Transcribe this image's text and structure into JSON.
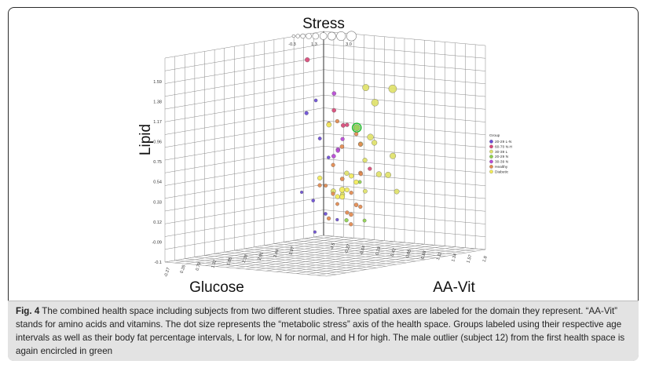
{
  "chart_data": {
    "type": "scatter",
    "axes": {
      "lipid": {
        "label": "Lipid",
        "ticks": [
          "1.59",
          "1.38",
          "1.17",
          "0.96",
          "0.75",
          "0.54",
          "0.33",
          "0.12",
          "-0.09",
          "-0.1"
        ]
      },
      "glucose": {
        "label": "Glucose",
        "ticks": [
          "-0.27",
          "0.26",
          "0.79",
          "1.32",
          "1.85",
          "2.38",
          "2.91",
          "3.44",
          "3.97"
        ]
      },
      "aa_vit": {
        "label": "AA-Vit",
        "ticks": [
          "-4.5",
          "-0.27",
          "-0.04",
          "0.19",
          "0.42",
          "0.65",
          "0.88",
          "1.11",
          "1.34",
          "1.57",
          "1.8"
        ]
      },
      "stress": {
        "label": "Stress",
        "size_ticks": [
          "-0.3",
          "1.3",
          "3.0"
        ]
      }
    },
    "legend": {
      "title": "Group",
      "placement": "right",
      "entries": [
        {
          "label": "20-29 L-N",
          "color": "#6a4cd6"
        },
        {
          "label": "60-70 N-H",
          "color": "#d94a7a"
        },
        {
          "label": "30-39 L",
          "color": "#dfe26a"
        },
        {
          "label": "20-29 N",
          "color": "#8fd04e"
        },
        {
          "label": "30-39 N",
          "color": "#b84ad6"
        },
        {
          "label": "Healthy",
          "color": "#e38a4f"
        },
        {
          "label": "Diabetic",
          "color": "#f2ec5a"
        }
      ]
    },
    "points": [
      {
        "g": 0,
        "u": 0.15,
        "v": 0.05,
        "z": -0.05,
        "s": 0.2
      },
      {
        "g": 0,
        "u": 0.1,
        "v": 0.12,
        "z": 0.1,
        "s": 0.3
      },
      {
        "g": 0,
        "u": 0.05,
        "v": 0.2,
        "z": 0.05,
        "s": 0.2
      },
      {
        "g": 0,
        "u": 0.2,
        "v": 0.08,
        "z": 0.22,
        "s": 0.3
      },
      {
        "g": 0,
        "u": 0.3,
        "v": 0.05,
        "z": 0.3,
        "s": 0.2
      },
      {
        "g": 0,
        "u": 0.5,
        "v": 0.3,
        "z": 1.0,
        "s": 0.5
      },
      {
        "g": 0,
        "u": 0.7,
        "v": 0.6,
        "z": 1.15,
        "s": 0.3
      },
      {
        "g": 0,
        "u": 0.4,
        "v": 0.35,
        "z": 0.78,
        "s": 0.4
      },
      {
        "g": 0,
        "u": 0.25,
        "v": 0.3,
        "z": 0.6,
        "s": 0.3
      },
      {
        "g": 1,
        "u": 0.95,
        "v": 0.75,
        "z": 1.53,
        "s": 0.8
      },
      {
        "g": 1,
        "u": 0.8,
        "v": 0.9,
        "z": 1.1,
        "s": 0.6
      },
      {
        "g": 1,
        "u": 0.6,
        "v": 0.85,
        "z": 0.95,
        "s": 0.5
      },
      {
        "g": 1,
        "u": 0.9,
        "v": 1.1,
        "z": 1.0,
        "s": 0.7
      },
      {
        "g": 1,
        "u": 0.45,
        "v": 0.5,
        "z": 0.92,
        "s": 0.5
      },
      {
        "g": 1,
        "u": 0.7,
        "v": 1.2,
        "z": 0.62,
        "s": 0.5
      },
      {
        "g": 2,
        "u": 1.0,
        "v": 1.45,
        "z": 1.35,
        "s": 1.6
      },
      {
        "g": 2,
        "u": 1.1,
        "v": 1.65,
        "z": 1.25,
        "s": 1.8
      },
      {
        "g": 2,
        "u": 0.95,
        "v": 1.7,
        "z": 1.35,
        "s": 2.2
      },
      {
        "g": 2,
        "u": 1.05,
        "v": 1.55,
        "z": 0.95,
        "s": 1.5
      },
      {
        "g": 2,
        "u": 1.0,
        "v": 1.75,
        "z": 0.8,
        "s": 1.4
      },
      {
        "g": 2,
        "u": 0.9,
        "v": 1.6,
        "z": 0.62,
        "s": 1.3
      },
      {
        "g": 2,
        "u": 0.8,
        "v": 1.4,
        "z": 0.6,
        "s": 1.2
      },
      {
        "g": 2,
        "u": 0.75,
        "v": 1.3,
        "z": 0.85,
        "s": 1.1
      },
      {
        "g": 2,
        "u": 0.7,
        "v": 1.5,
        "z": 0.45,
        "s": 1.0
      },
      {
        "g": 2,
        "u": 0.6,
        "v": 1.0,
        "z": 0.8,
        "s": 0.9
      },
      {
        "g": 2,
        "u": 0.5,
        "v": 0.95,
        "z": 0.65,
        "s": 0.8
      },
      {
        "g": 2,
        "u": 0.35,
        "v": 0.6,
        "z": 0.5,
        "s": 0.9
      },
      {
        "g": 2,
        "u": 0.4,
        "v": 0.5,
        "z": 0.35,
        "s": 1.0
      },
      {
        "g": 2,
        "u": 0.55,
        "v": 0.75,
        "z": 0.36,
        "s": 0.8
      },
      {
        "g": 2,
        "u": 0.65,
        "v": 1.1,
        "z": 0.42,
        "s": 0.7
      },
      {
        "g": 3,
        "u": 0.95,
        "v": 1.3,
        "z": 1.0,
        "s": 1.6,
        "outlier": true
      },
      {
        "g": 3,
        "u": 0.2,
        "v": 0.45,
        "z": 0.08,
        "s": 0.5
      },
      {
        "g": 3,
        "u": 0.25,
        "v": 0.7,
        "z": 0.1,
        "s": 0.4
      },
      {
        "g": 3,
        "u": 0.15,
        "v": 0.55,
        "z": 0.4,
        "s": 0.4
      },
      {
        "g": 4,
        "u": 0.5,
        "v": 0.65,
        "z": 0.72,
        "s": 0.6
      },
      {
        "g": 4,
        "u": 0.45,
        "v": 0.6,
        "z": 0.7,
        "s": 0.5
      },
      {
        "g": 4,
        "u": 0.6,
        "v": 0.7,
        "z": 0.68,
        "s": 0.6
      },
      {
        "g": 4,
        "u": 0.55,
        "v": 0.75,
        "z": 0.82,
        "s": 0.5
      },
      {
        "g": 4,
        "u": 0.85,
        "v": 0.95,
        "z": 1.25,
        "s": 0.6
      },
      {
        "g": 5,
        "u": 0.1,
        "v": 0.25,
        "z": 0.88,
        "s": 0.5
      },
      {
        "g": 5,
        "u": 0.25,
        "v": 0.45,
        "z": 0.7,
        "s": 0.6
      },
      {
        "g": 5,
        "u": 0.3,
        "v": 0.4,
        "z": 0.55,
        "s": 0.5
      },
      {
        "g": 5,
        "u": 0.35,
        "v": 0.55,
        "z": 0.45,
        "s": 0.6
      },
      {
        "g": 5,
        "u": 0.4,
        "v": 0.7,
        "z": 0.35,
        "s": 0.5
      },
      {
        "g": 5,
        "u": 0.45,
        "v": 0.85,
        "z": 0.25,
        "s": 0.5
      },
      {
        "g": 5,
        "u": 0.3,
        "v": 0.6,
        "z": 0.15,
        "s": 0.6
      },
      {
        "g": 5,
        "u": 0.2,
        "v": 0.5,
        "z": 0.05,
        "s": 0.5
      },
      {
        "g": 5,
        "u": 0.15,
        "v": 0.3,
        "z": 0.2,
        "s": 0.4
      },
      {
        "g": 5,
        "u": 0.35,
        "v": 0.3,
        "z": 0.38,
        "s": 0.5
      },
      {
        "g": 5,
        "u": 0.55,
        "v": 0.95,
        "z": 0.55,
        "s": 0.6
      },
      {
        "g": 5,
        "u": 0.6,
        "v": 0.85,
        "z": 0.22,
        "s": 0.5
      },
      {
        "g": 5,
        "u": 0.65,
        "v": 1.0,
        "z": 0.3,
        "s": 0.6
      },
      {
        "g": 5,
        "u": 0.7,
        "v": 1.05,
        "z": 0.9,
        "s": 0.5
      },
      {
        "g": 5,
        "u": 0.5,
        "v": 0.9,
        "z": 0.78,
        "s": 0.6
      },
      {
        "g": 5,
        "u": 0.25,
        "v": 0.35,
        "z": 0.3,
        "s": 0.5
      },
      {
        "g": 5,
        "u": 0.18,
        "v": 0.2,
        "z": 0.35,
        "s": 0.4
      },
      {
        "g": 5,
        "u": 0.4,
        "v": 0.45,
        "z": 0.12,
        "s": 0.5
      },
      {
        "g": 5,
        "u": 0.75,
        "v": 1.15,
        "z": 0.58,
        "s": 0.5
      },
      {
        "g": 6,
        "u": 0.3,
        "v": 0.5,
        "z": 0.35,
        "s": 1.2
      },
      {
        "g": 6,
        "u": 0.35,
        "v": 0.55,
        "z": 0.3,
        "s": 1.0
      },
      {
        "g": 6,
        "u": 0.45,
        "v": 0.75,
        "z": 0.5,
        "s": 0.9
      },
      {
        "g": 6,
        "u": 0.55,
        "v": 0.8,
        "z": 0.4,
        "s": 0.8
      },
      {
        "g": 6,
        "u": 0.25,
        "v": 0.4,
        "z": 0.28,
        "s": 0.8
      },
      {
        "g": 6,
        "u": 0.6,
        "v": 0.95,
        "z": 0.48,
        "s": 0.9
      },
      {
        "g": 6,
        "u": 0.5,
        "v": 0.55,
        "z": 0.92,
        "s": 1.0
      },
      {
        "g": 6,
        "u": 0.4,
        "v": 0.35,
        "z": 0.45,
        "s": 0.8
      }
    ]
  },
  "caption": {
    "label": "Fig. 4",
    "text": " The combined health space including subjects from two different studies. Three spatial axes are labeled for the domain they represent. “AA-Vit” stands for amino acids and vitamins. The dot size represents the “metabolic stress” axis of the health space. Groups labeled using their respective age intervals as well as their body fat percentage intervals, L for low, N for normal, and H for high. The male outlier (subject 12) from the first health space is again encircled in green"
  }
}
